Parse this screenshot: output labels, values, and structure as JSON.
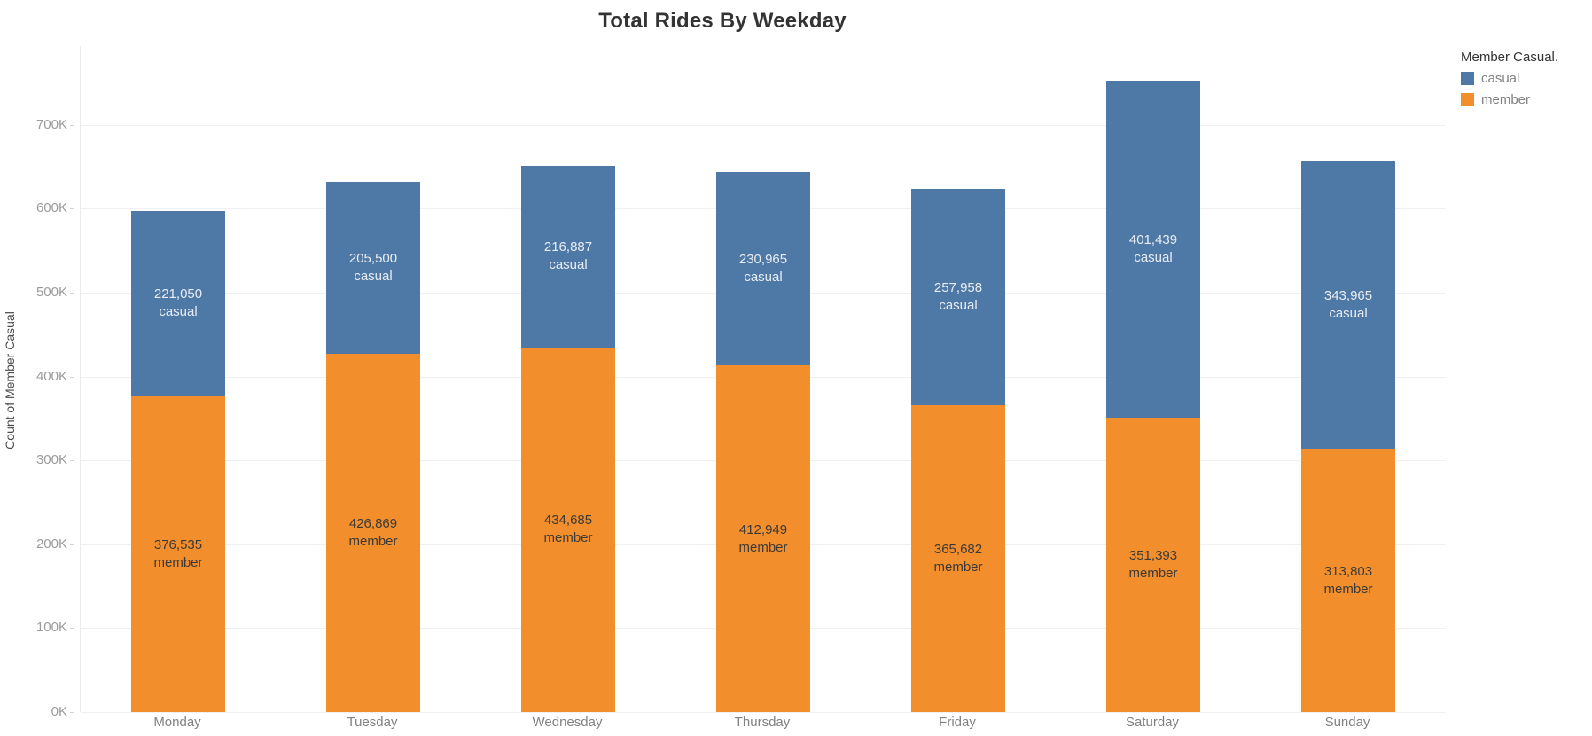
{
  "title": "Total Rides By Weekday",
  "legend": {
    "title": "Member Casual.",
    "items": [
      {
        "label": "casual",
        "color": "#4e79a7"
      },
      {
        "label": "member",
        "color": "#f28e2b"
      }
    ]
  },
  "y_axis": {
    "title": "Count of Member Casual",
    "tick_labels": [
      "0K",
      "100K",
      "200K",
      "300K",
      "400K",
      "500K",
      "600K",
      "700K"
    ],
    "tick_values": [
      0,
      100000,
      200000,
      300000,
      400000,
      500000,
      600000,
      700000
    ]
  },
  "chart_data": {
    "type": "bar",
    "stacked": true,
    "title": "Total Rides By Weekday",
    "xlabel": "",
    "ylabel": "Count of Member Casual",
    "ylim": [
      0,
      794000
    ],
    "grid": "horizontal",
    "legend_position": "top-right",
    "categories": [
      "Monday",
      "Tuesday",
      "Wednesday",
      "Thursday",
      "Friday",
      "Saturday",
      "Sunday"
    ],
    "series": [
      {
        "name": "member",
        "color": "#f28e2b",
        "label_color": "#3b3a38",
        "values": [
          376535,
          426869,
          434685,
          412949,
          365682,
          351393,
          313803
        ]
      },
      {
        "name": "casual",
        "color": "#4e79a7",
        "label_color": "#e8ecf2",
        "values": [
          221050,
          205500,
          216887,
          230965,
          257958,
          401439,
          343965
        ]
      }
    ]
  }
}
